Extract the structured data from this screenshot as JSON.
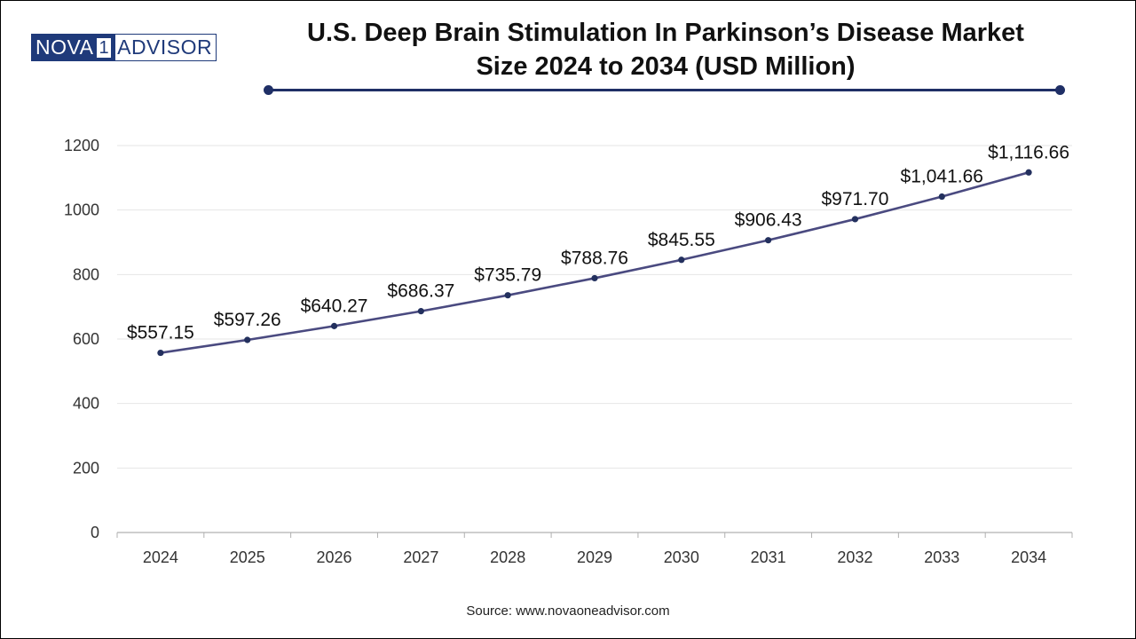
{
  "brand": {
    "logo_part1": "NOVA",
    "logo_part2": "1",
    "logo_part3": "ADVISOR"
  },
  "header": {
    "title_line1": "U.S. Deep Brain Stimulation In Parkinson’s Disease Market",
    "title_line2": "Size 2024 to 2034 (USD Million)"
  },
  "footer": {
    "source": "Source: www.novaoneadvisor.com"
  },
  "colors": {
    "line": "#4a4a80",
    "marker": "#23305e",
    "accent": "#1f2f66"
  },
  "chart_data": {
    "type": "line",
    "title": "U.S. Deep Brain Stimulation In Parkinson’s Disease Market Size 2024 to 2034 (USD Million)",
    "xlabel": "",
    "ylabel": "",
    "ylim": [
      0,
      1200
    ],
    "yticks": [
      0,
      200,
      400,
      600,
      800,
      1000,
      1200
    ],
    "grid": true,
    "legend": "none",
    "categories": [
      "2024",
      "2025",
      "2026",
      "2027",
      "2028",
      "2029",
      "2030",
      "2031",
      "2032",
      "2033",
      "2034"
    ],
    "series": [
      {
        "values": [
          557.15,
          597.26,
          640.27,
          686.37,
          735.79,
          788.76,
          845.55,
          906.43,
          971.7,
          1041.66,
          1116.66
        ],
        "labels": [
          "$557.15",
          "$597.26",
          "$640.27",
          "$686.37",
          "$735.79",
          "$788.76",
          "$845.55",
          "$906.43",
          "$971.70",
          "$1,041.66",
          "$1,116.66"
        ]
      }
    ]
  }
}
